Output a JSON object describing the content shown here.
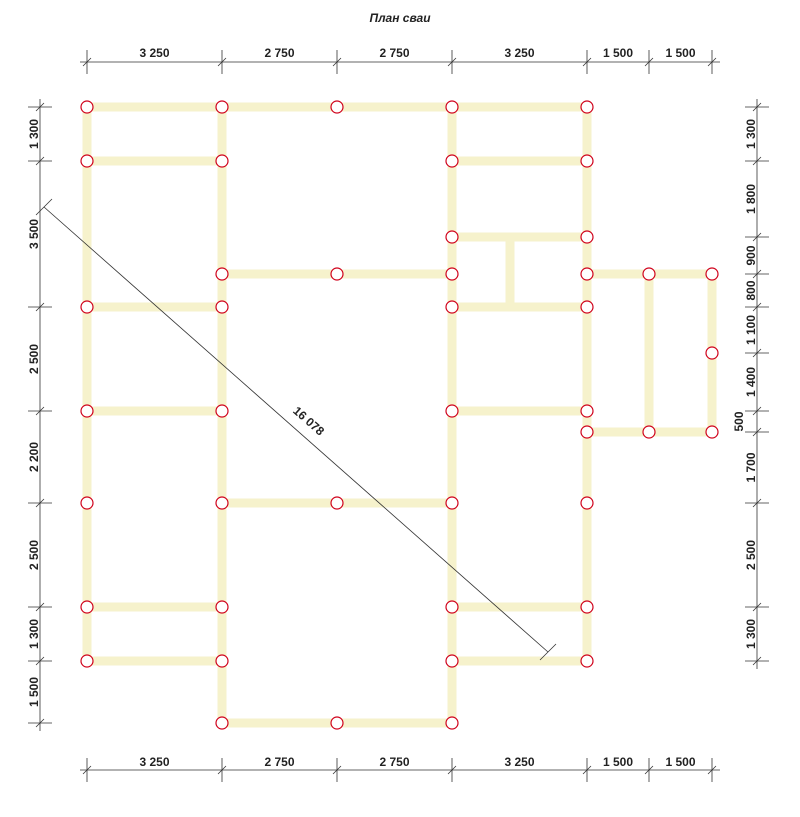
{
  "title": "План сваи",
  "top": [
    "3 250",
    "2 750",
    "2 750",
    "3 250",
    "1 500",
    "1 500"
  ],
  "bottom": [
    "3 250",
    "2 750",
    "2 750",
    "3 250",
    "1 500",
    "1 500"
  ],
  "left": [
    "1 300",
    "3 500",
    "2 500",
    "2 200",
    "2 500",
    "1 300",
    "1 500"
  ],
  "right": [
    "1 300",
    "1 800",
    "900",
    "800",
    "1 100",
    "1 400",
    "500",
    "1 700",
    "2 500",
    "1 300"
  ],
  "diagonal": "16 078"
}
